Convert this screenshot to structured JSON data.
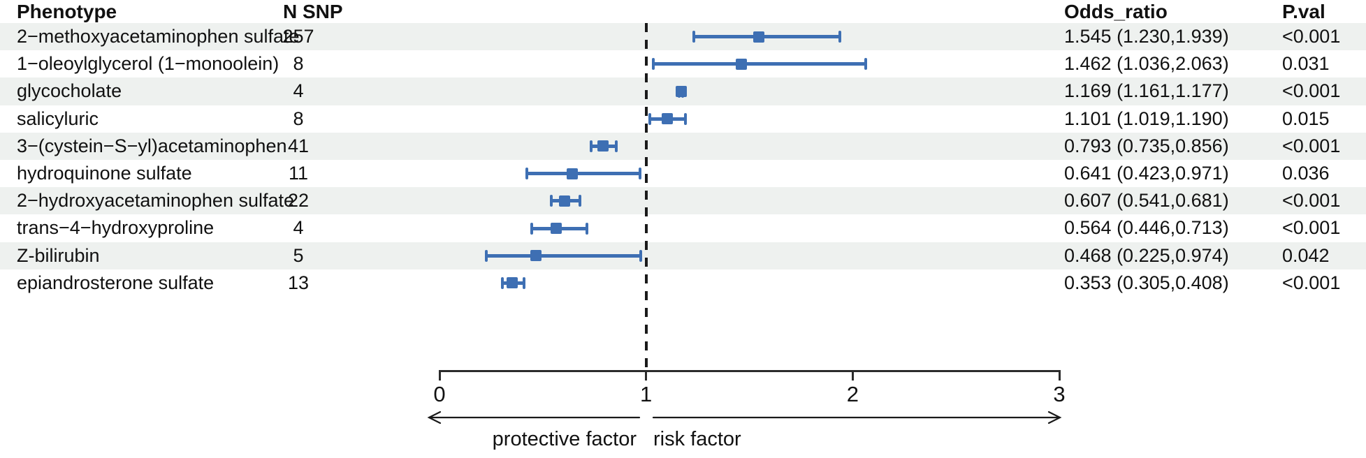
{
  "table": {
    "headers": {
      "phenotype": "Phenotype",
      "n_snp": "N SNP",
      "odds_ratio": "Odds_ratio",
      "p_val": "P.val"
    }
  },
  "chart_data": {
    "type": "forest",
    "xlim": [
      0,
      3
    ],
    "x_ticks": [
      0,
      1,
      2,
      3
    ],
    "reference_line": 1,
    "grid": false,
    "marker_color": "#3e6fb3",
    "stripe_color": "#eef1ef",
    "axis_annotations": {
      "left": "protective factor",
      "right": "risk factor"
    },
    "columns": [
      "Phenotype",
      "N SNP",
      "Odds_ratio",
      "P.val"
    ],
    "rows": [
      {
        "phenotype": "2−methoxyacetaminophen sulfate",
        "n_snp": "257",
        "or": 1.545,
        "ci_low": 1.23,
        "ci_high": 1.939,
        "or_ci": "1.545 (1.230,1.939)",
        "p_val": "<0.001"
      },
      {
        "phenotype": "1−oleoylglycerol (1−monoolein)",
        "n_snp": "8",
        "or": 1.462,
        "ci_low": 1.036,
        "ci_high": 2.063,
        "or_ci": "1.462 (1.036,2.063)",
        "p_val": "0.031"
      },
      {
        "phenotype": "glycocholate",
        "n_snp": "4",
        "or": 1.169,
        "ci_low": 1.161,
        "ci_high": 1.177,
        "or_ci": "1.169 (1.161,1.177)",
        "p_val": "<0.001"
      },
      {
        "phenotype": "salicyluric",
        "n_snp": "8",
        "or": 1.101,
        "ci_low": 1.019,
        "ci_high": 1.19,
        "or_ci": "1.101 (1.019,1.190)",
        "p_val": "0.015"
      },
      {
        "phenotype": "3−(cystein−S−yl)acetaminophen",
        "n_snp": "41",
        "or": 0.793,
        "ci_low": 0.735,
        "ci_high": 0.856,
        "or_ci": "0.793 (0.735,0.856)",
        "p_val": "<0.001"
      },
      {
        "phenotype": "hydroquinone sulfate",
        "n_snp": "11",
        "or": 0.641,
        "ci_low": 0.423,
        "ci_high": 0.971,
        "or_ci": "0.641 (0.423,0.971)",
        "p_val": "0.036"
      },
      {
        "phenotype": "2−hydroxyacetaminophen sulfate",
        "n_snp": "22",
        "or": 0.607,
        "ci_low": 0.541,
        "ci_high": 0.681,
        "or_ci": "0.607 (0.541,0.681)",
        "p_val": "<0.001"
      },
      {
        "phenotype": "trans−4−hydroxyproline",
        "n_snp": "4",
        "or": 0.564,
        "ci_low": 0.446,
        "ci_high": 0.713,
        "or_ci": "0.564 (0.446,0.713)",
        "p_val": "<0.001"
      },
      {
        "phenotype": "Z-bilirubin",
        "n_snp": "5",
        "or": 0.468,
        "ci_low": 0.225,
        "ci_high": 0.974,
        "or_ci": "0.468 (0.225,0.974)",
        "p_val": "0.042"
      },
      {
        "phenotype": "epiandrosterone sulfate",
        "n_snp": "13",
        "or": 0.353,
        "ci_low": 0.305,
        "ci_high": 0.408,
        "or_ci": "0.353 (0.305,0.408)",
        "p_val": "<0.001"
      }
    ]
  }
}
